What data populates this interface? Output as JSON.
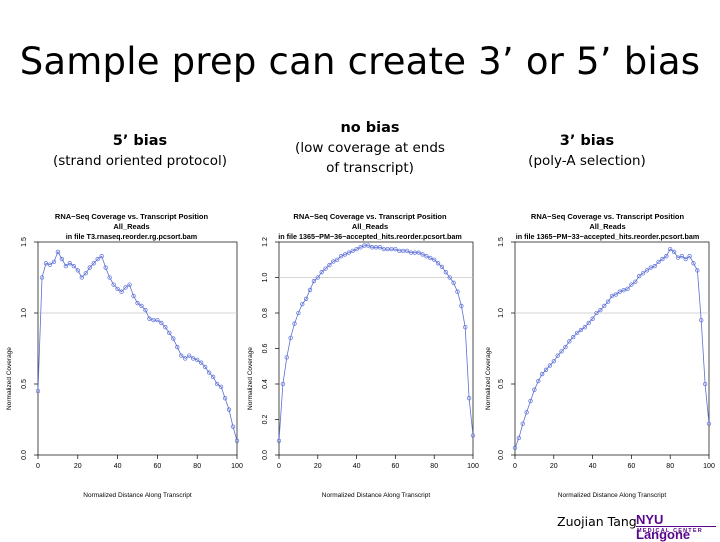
{
  "slide": {
    "title": "Sample prep can create 3’ or 5’ bias",
    "author": "Zuojian Tang",
    "logo_main": "NYU Langone",
    "logo_sub": "MEDICAL CENTER"
  },
  "columns": [
    {
      "heading": "5’ bias",
      "sub1": "(strand oriented protocol)",
      "sub2": ""
    },
    {
      "heading": "no bias",
      "sub1": "(low coverage at ends",
      "sub2": "of  transcript)"
    },
    {
      "heading": "3’ bias",
      "sub1": "(poly-A selection)",
      "sub2": ""
    }
  ],
  "colors": {
    "series": "#5b6fd6",
    "refline": "#c8c8c8",
    "axis": "#000000"
  },
  "chart_data": [
    {
      "type": "line",
      "title": "RNA−Seq Coverage vs. Transcript Position",
      "subtitle": "All_Reads",
      "subtitle2": "in file T3.rnaseq.reorder.rg.pcsort.bam",
      "xlabel": "Normalized Distance Along Transcript",
      "ylabel": "Normalized Coverage",
      "xlim": [
        0,
        100
      ],
      "ylim": [
        0,
        1.5
      ],
      "xticks": [
        0,
        20,
        40,
        60,
        80,
        100
      ],
      "yticks": [
        0.0,
        0.5,
        1.0,
        1.5
      ],
      "refline": 1.0,
      "series": [
        {
          "x": [
            0,
            2,
            4,
            6,
            8,
            10,
            12,
            14,
            16,
            18,
            20,
            22,
            24,
            26,
            28,
            30,
            32,
            34,
            36,
            38,
            40,
            42,
            44,
            46,
            48,
            50,
            52,
            54,
            56,
            58,
            60,
            62,
            64,
            66,
            68,
            70,
            72,
            74,
            76,
            78,
            80,
            82,
            84,
            86,
            88,
            90,
            92,
            94,
            96,
            98,
            100
          ],
          "values": [
            0.45,
            1.25,
            1.35,
            1.34,
            1.36,
            1.43,
            1.38,
            1.33,
            1.35,
            1.33,
            1.3,
            1.25,
            1.28,
            1.32,
            1.35,
            1.38,
            1.4,
            1.32,
            1.25,
            1.2,
            1.17,
            1.15,
            1.18,
            1.2,
            1.12,
            1.07,
            1.05,
            1.02,
            0.96,
            0.95,
            0.95,
            0.93,
            0.9,
            0.86,
            0.82,
            0.76,
            0.7,
            0.68,
            0.7,
            0.68,
            0.67,
            0.65,
            0.62,
            0.58,
            0.55,
            0.5,
            0.48,
            0.4,
            0.32,
            0.2,
            0.1
          ]
        }
      ]
    },
    {
      "type": "line",
      "title": "RNA−Seq Coverage vs. Transcript Position",
      "subtitle": "All_Reads",
      "subtitle2": "in file 1365−PM−36−accepted_hits.reorder.pcsort.bam",
      "xlabel": "Normalized Distance Along Transcript",
      "ylabel": "Normalized Coverage",
      "xlim": [
        0,
        100
      ],
      "ylim": [
        0,
        1.2
      ],
      "xticks": [
        0,
        20,
        40,
        60,
        80,
        100
      ],
      "yticks": [
        0.0,
        0.2,
        0.4,
        0.6,
        0.8,
        1.0,
        1.2
      ],
      "refline": 1.0,
      "series": [
        {
          "x": [
            0,
            2,
            4,
            6,
            8,
            10,
            12,
            14,
            16,
            18,
            20,
            22,
            24,
            26,
            28,
            30,
            32,
            34,
            36,
            38,
            40,
            42,
            44,
            46,
            48,
            50,
            52,
            54,
            56,
            58,
            60,
            62,
            64,
            66,
            68,
            70,
            72,
            74,
            76,
            78,
            80,
            82,
            84,
            86,
            88,
            90,
            92,
            94,
            96,
            98,
            100
          ],
          "values": [
            0.08,
            0.4,
            0.55,
            0.66,
            0.74,
            0.8,
            0.85,
            0.88,
            0.93,
            0.98,
            1.0,
            1.03,
            1.05,
            1.07,
            1.09,
            1.1,
            1.12,
            1.13,
            1.14,
            1.15,
            1.16,
            1.17,
            1.18,
            1.18,
            1.17,
            1.17,
            1.17,
            1.16,
            1.16,
            1.16,
            1.16,
            1.15,
            1.15,
            1.15,
            1.14,
            1.14,
            1.14,
            1.13,
            1.12,
            1.11,
            1.1,
            1.08,
            1.06,
            1.03,
            1.0,
            0.97,
            0.92,
            0.84,
            0.72,
            0.32,
            0.11
          ]
        }
      ]
    },
    {
      "type": "line",
      "title": "RNA−Seq Coverage vs. Transcript Position",
      "subtitle": "All_Reads",
      "subtitle2": "in file 1365−PM−33−accepted_hits.reorder.pcsort.bam",
      "xlabel": "Normalized Distance Along Transcript",
      "ylabel": "Normalized Coverage",
      "xlim": [
        0,
        100
      ],
      "ylim": [
        0,
        1.5
      ],
      "xticks": [
        0,
        20,
        40,
        60,
        80,
        100
      ],
      "yticks": [
        0.0,
        0.5,
        1.0,
        1.5
      ],
      "refline": 1.0,
      "series": [
        {
          "x": [
            0,
            2,
            4,
            6,
            8,
            10,
            12,
            14,
            16,
            18,
            20,
            22,
            24,
            26,
            28,
            30,
            32,
            34,
            36,
            38,
            40,
            42,
            44,
            46,
            48,
            50,
            52,
            54,
            56,
            58,
            60,
            62,
            64,
            66,
            68,
            70,
            72,
            74,
            76,
            78,
            80,
            82,
            84,
            86,
            88,
            90,
            92,
            94,
            96,
            98,
            100
          ],
          "values": [
            0.05,
            0.12,
            0.22,
            0.3,
            0.38,
            0.46,
            0.52,
            0.57,
            0.6,
            0.63,
            0.66,
            0.7,
            0.73,
            0.76,
            0.8,
            0.83,
            0.86,
            0.88,
            0.9,
            0.93,
            0.96,
            1.0,
            1.02,
            1.05,
            1.08,
            1.12,
            1.13,
            1.15,
            1.16,
            1.17,
            1.2,
            1.22,
            1.26,
            1.28,
            1.3,
            1.32,
            1.33,
            1.36,
            1.38,
            1.4,
            1.45,
            1.43,
            1.39,
            1.4,
            1.38,
            1.4,
            1.35,
            1.3,
            0.95,
            0.5,
            0.22
          ]
        }
      ]
    }
  ]
}
